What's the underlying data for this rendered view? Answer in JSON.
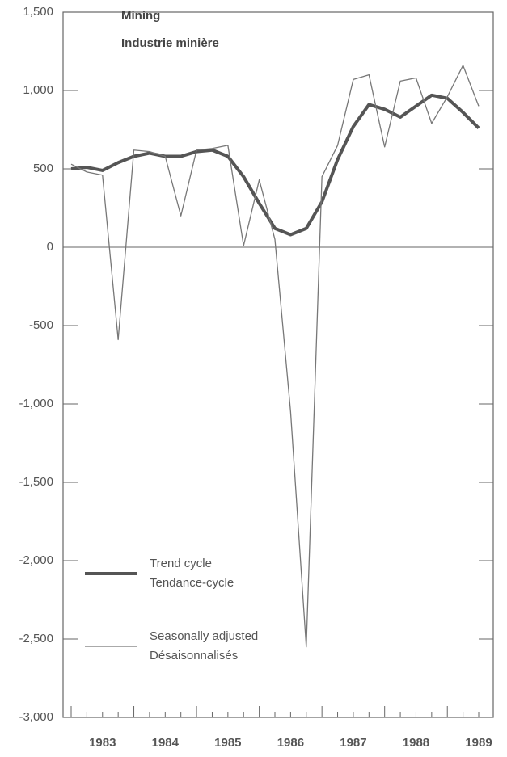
{
  "chart_data": {
    "type": "line",
    "title": "Mining",
    "subtitle": "Industrie minière",
    "x": [
      1983.0,
      1983.25,
      1983.5,
      1983.75,
      1984.0,
      1984.25,
      1984.5,
      1984.75,
      1985.0,
      1985.25,
      1985.5,
      1985.75,
      1986.0,
      1986.25,
      1986.5,
      1986.75,
      1987.0,
      1987.25,
      1987.5,
      1987.75,
      1988.0,
      1988.25,
      1988.5,
      1988.75,
      1989.0,
      1989.25,
      1989.5
    ],
    "series": [
      {
        "name": "Trend cycle",
        "name_alt": "Tendance-cycle",
        "color": "#555",
        "width": 4,
        "values": [
          500,
          510,
          490,
          540,
          580,
          600,
          580,
          580,
          610,
          620,
          580,
          450,
          280,
          120,
          80,
          120,
          290,
          560,
          770,
          910,
          880,
          830,
          900,
          970,
          950,
          860,
          760
        ]
      },
      {
        "name": "Seasonally adjusted",
        "name_alt": "Désaisonnalisés",
        "color": "#777",
        "width": 1.3,
        "values": [
          530,
          480,
          460,
          -590,
          620,
          610,
          580,
          200,
          620,
          630,
          650,
          10,
          430,
          50,
          -1050,
          -2550,
          450,
          650,
          1070,
          1100,
          640,
          1060,
          1080,
          790,
          960,
          1160,
          900
        ]
      }
    ],
    "xlim": [
      1983.0,
      1989.5
    ],
    "xticks": [
      {
        "value": 1983.5,
        "label": "1983"
      },
      {
        "value": 1984.5,
        "label": "1984"
      },
      {
        "value": 1985.5,
        "label": "1985"
      },
      {
        "value": 1986.5,
        "label": "1986"
      },
      {
        "value": 1987.5,
        "label": "1987"
      },
      {
        "value": 1988.5,
        "label": "1988"
      },
      {
        "value": 1989.5,
        "label": "1989"
      }
    ],
    "ylim": [
      -3000,
      1500
    ],
    "yticks": [
      {
        "value": 1500,
        "label": "1,500"
      },
      {
        "value": 1000,
        "label": "1,000"
      },
      500,
      0,
      -500,
      {
        "value": -1000,
        "label": "-1,000"
      },
      {
        "value": -1500,
        "label": "-1,500"
      },
      {
        "value": -2000,
        "label": "-2,000"
      },
      {
        "value": -2500,
        "label": "-2,500"
      },
      {
        "value": -3000,
        "label": "-3,000"
      }
    ],
    "legend": "lower left"
  }
}
